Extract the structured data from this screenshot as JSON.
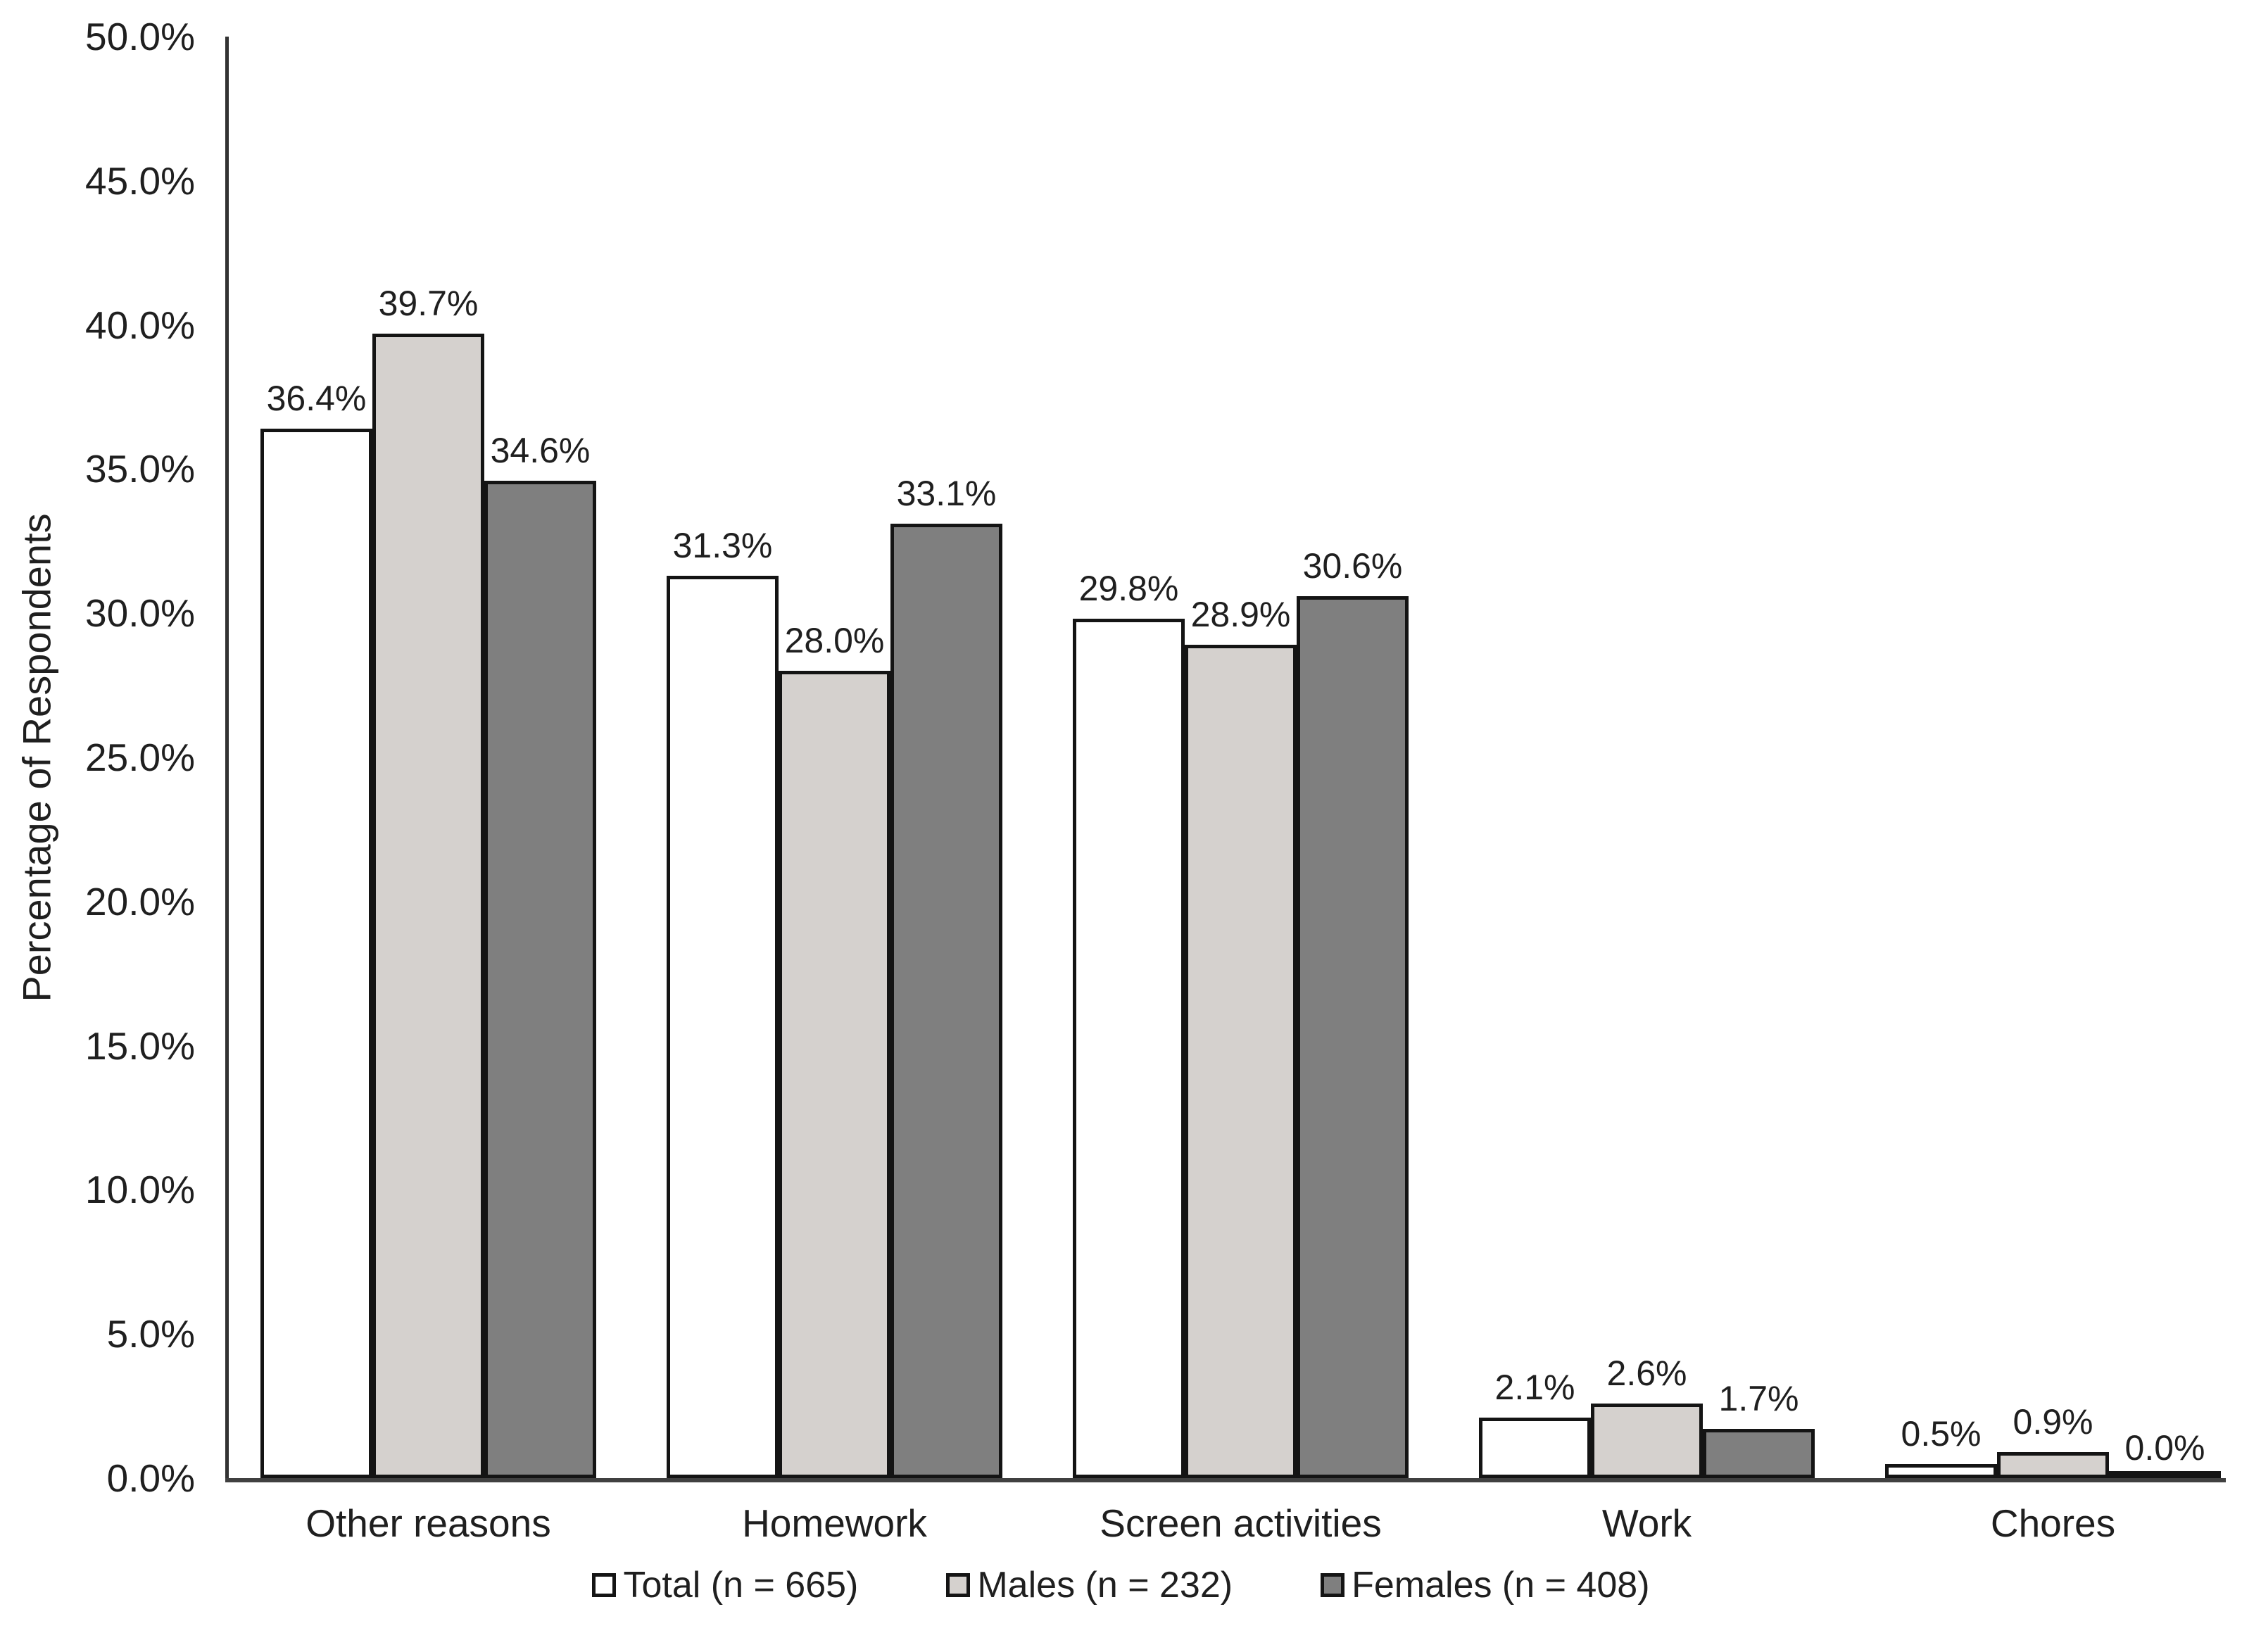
{
  "chart_data": {
    "type": "bar",
    "title": "",
    "xlabel": "",
    "ylabel": "Percentage of Respondents",
    "categories": [
      "Other reasons",
      "Homework",
      "Screen activities",
      "Work",
      "Chores"
    ],
    "series": [
      {
        "name": "Total (n = 665)",
        "color": "#ffffff",
        "values": [
          36.4,
          31.3,
          29.8,
          2.1,
          0.5
        ]
      },
      {
        "name": "Males (n = 232)",
        "color": "#d5d1ce",
        "values": [
          39.7,
          28.0,
          28.9,
          2.6,
          0.9
        ]
      },
      {
        "name": "Females (n = 408)",
        "color": "#7f7f7f",
        "values": [
          34.6,
          33.1,
          30.6,
          1.7,
          0.0
        ]
      }
    ],
    "value_labels": [
      [
        "36.4%",
        "31.3%",
        "29.8%",
        "2.1%",
        "0.5%"
      ],
      [
        "39.7%",
        "28.0%",
        "28.9%",
        "2.6%",
        "0.9%"
      ],
      [
        "34.6%",
        "33.1%",
        "30.6%",
        "1.7%",
        "0.0%"
      ]
    ],
    "ylim": [
      0,
      50
    ],
    "ytick_step": 5,
    "ytick_labels": [
      "0.0%",
      "5.0%",
      "10.0%",
      "15.0%",
      "20.0%",
      "25.0%",
      "30.0%",
      "35.0%",
      "40.0%",
      "45.0%",
      "50.0%"
    ],
    "grid": false,
    "legend_position": "bottom",
    "bar_edge_color": "#141414"
  }
}
